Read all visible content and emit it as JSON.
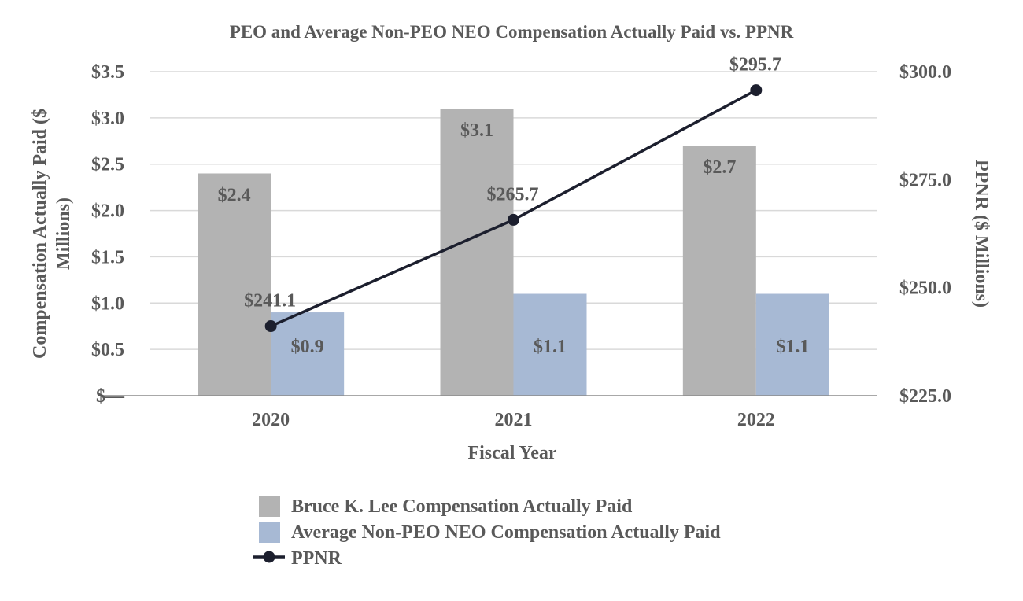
{
  "chart_data": {
    "type": "bar",
    "title": "PEO and Average Non-PEO NEO Compensation Actually Paid vs. PPNR",
    "xlabel": "Fiscal Year",
    "ylabel": "Compensation Actually Paid ($ Millions)",
    "y2label": "PPNR ($ Millions)",
    "categories": [
      "2020",
      "2021",
      "2022"
    ],
    "ylim": [
      0,
      3.5
    ],
    "y2lim": [
      225,
      300
    ],
    "yticks": [
      "$—",
      "$0.5",
      "$1.0",
      "$1.5",
      "$2.0",
      "$2.5",
      "$3.0",
      "$3.5"
    ],
    "y2ticks": [
      "$225.0",
      "$250.0",
      "$275.0",
      "$300.0"
    ],
    "series": [
      {
        "name": "Bruce K. Lee Compensation Actually Paid",
        "type": "bar",
        "axis": "left",
        "values": [
          2.4,
          3.1,
          2.7
        ],
        "labels": [
          "$2.4",
          "$3.1",
          "$2.7"
        ],
        "color": "#b3b3b3"
      },
      {
        "name": "Average Non-PEO NEO Compensation Actually Paid",
        "type": "bar",
        "axis": "left",
        "values": [
          0.9,
          1.1,
          1.1
        ],
        "labels": [
          "$0.9",
          "$1.1",
          "$1.1"
        ],
        "color": "#a7b9d4"
      },
      {
        "name": "PPNR",
        "type": "line",
        "axis": "right",
        "values": [
          241.1,
          265.7,
          295.7
        ],
        "labels": [
          "$241.1",
          "$265.7",
          "$295.7"
        ],
        "color": "#1c1f2e"
      }
    ],
    "grid": true,
    "legend": "bottom"
  },
  "colors": {
    "text": "#595959",
    "grid": "#d9d9d9",
    "axis": "#8c8c8c"
  }
}
